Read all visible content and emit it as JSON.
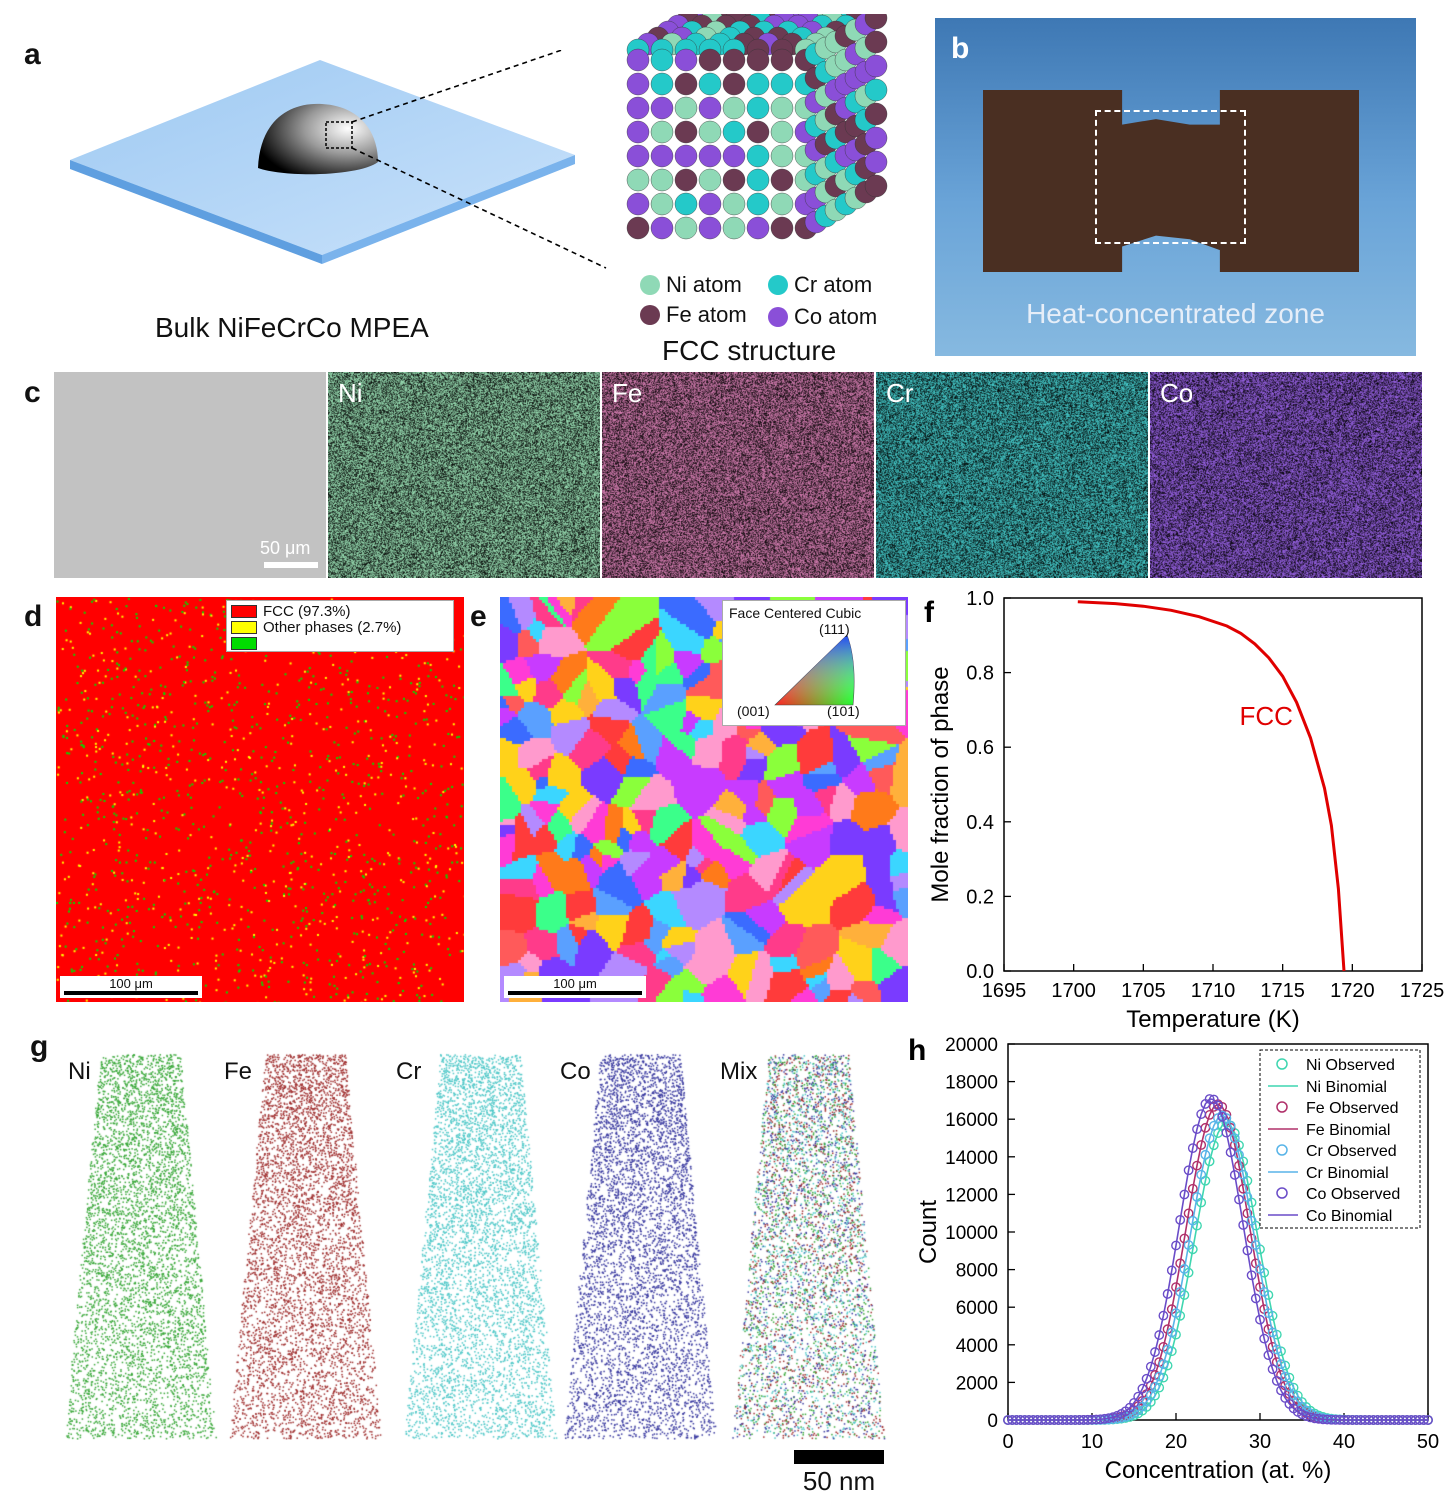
{
  "panels": {
    "a": {
      "label": "a",
      "caption_bulk": "Bulk NiFeCrCo MPEA",
      "caption_structure": "FCC structure",
      "atoms": [
        {
          "name": "Ni atom",
          "color": "#8fd9b6"
        },
        {
          "name": "Cr atom",
          "color": "#24c9c9"
        },
        {
          "name": "Fe atom",
          "color": "#6b3a52"
        },
        {
          "name": "Co atom",
          "color": "#8a4fd8"
        }
      ]
    },
    "b": {
      "label": "b",
      "caption": "Heat-concentrated zone"
    },
    "c": {
      "label": "c",
      "scale_bar": "50 μm",
      "tiles": [
        {
          "name": "",
          "color": "#bdbdbd"
        },
        {
          "name": "Ni",
          "color": "#9ce3b7"
        },
        {
          "name": "Fe",
          "color": "#d87fb4"
        },
        {
          "name": "Cr",
          "color": "#45cccc"
        },
        {
          "name": "Co",
          "color": "#9a63e8"
        }
      ]
    },
    "d": {
      "label": "d",
      "scale_bar": "100 μm",
      "legend": [
        {
          "label": "FCC (97.3%)",
          "color": "#ff0000"
        },
        {
          "label": "Other phases (2.7%)",
          "color": "#ffff00"
        },
        {
          "label": "",
          "color": "#00dd00"
        }
      ]
    },
    "e": {
      "label": "e",
      "scale_bar": "100 μm",
      "legend_title": "Face Centered Cubic",
      "poles": [
        "(111)",
        "(001)",
        "(101)"
      ]
    },
    "g": {
      "label": "g",
      "labels": [
        {
          "name": "Ni",
          "color": "#3aa83a"
        },
        {
          "name": "Fe",
          "color": "#a03030"
        },
        {
          "name": "Cr",
          "color": "#50c8c8"
        },
        {
          "name": "Co",
          "color": "#3a3aa0"
        },
        {
          "name": "Mix",
          "color": "#406060"
        }
      ],
      "scale_bar": "50 nm"
    }
  },
  "chart_data": [
    {
      "panel": "f",
      "type": "line",
      "xlabel": "Temperature (K)",
      "ylabel": "Mole fraction of phase",
      "xlim": [
        1695,
        1725
      ],
      "ylim": [
        0.0,
        1.0
      ],
      "xticks": [
        1695,
        1700,
        1705,
        1710,
        1715,
        1720,
        1725
      ],
      "yticks": [
        0.0,
        0.2,
        0.4,
        0.6,
        0.8,
        1.0
      ],
      "annotation": "FCC",
      "color": "#e00000",
      "x": [
        1700.3,
        1703,
        1705,
        1707,
        1709,
        1711,
        1712,
        1713,
        1714,
        1715,
        1716,
        1717,
        1718,
        1718.5,
        1719,
        1719.4
      ],
      "y": [
        0.99,
        0.985,
        0.978,
        0.967,
        0.95,
        0.925,
        0.905,
        0.877,
        0.84,
        0.79,
        0.72,
        0.625,
        0.49,
        0.39,
        0.22,
        0.0
      ]
    },
    {
      "panel": "h",
      "type": "scatter",
      "xlabel": "Concentration (at. %)",
      "ylabel": "Count",
      "xlim": [
        0,
        50
      ],
      "ylim": [
        0,
        20000
      ],
      "xticks": [
        0,
        10,
        20,
        30,
        40,
        50
      ],
      "yticks": [
        0,
        2000,
        4000,
        6000,
        8000,
        10000,
        12000,
        14000,
        16000,
        18000,
        20000
      ],
      "series": [
        {
          "name": "Ni Observed",
          "line_name": "Ni Binomial",
          "color": "#3fd6b0",
          "mean": 26.0,
          "sigma": 3.8,
          "peak": 15800
        },
        {
          "name": "Fe Observed",
          "line_name": "Fe Binomial",
          "color": "#b0306a",
          "mean": 25.0,
          "sigma": 3.8,
          "peak": 16800
        },
        {
          "name": "Cr Observed",
          "line_name": "Cr Binomial",
          "color": "#58b4e8",
          "mean": 25.5,
          "sigma": 3.8,
          "peak": 16200
        },
        {
          "name": "Co Observed",
          "line_name": "Co Binomial",
          "color": "#6a4cc8",
          "mean": 24.2,
          "sigma": 3.8,
          "peak": 17100
        }
      ]
    }
  ]
}
